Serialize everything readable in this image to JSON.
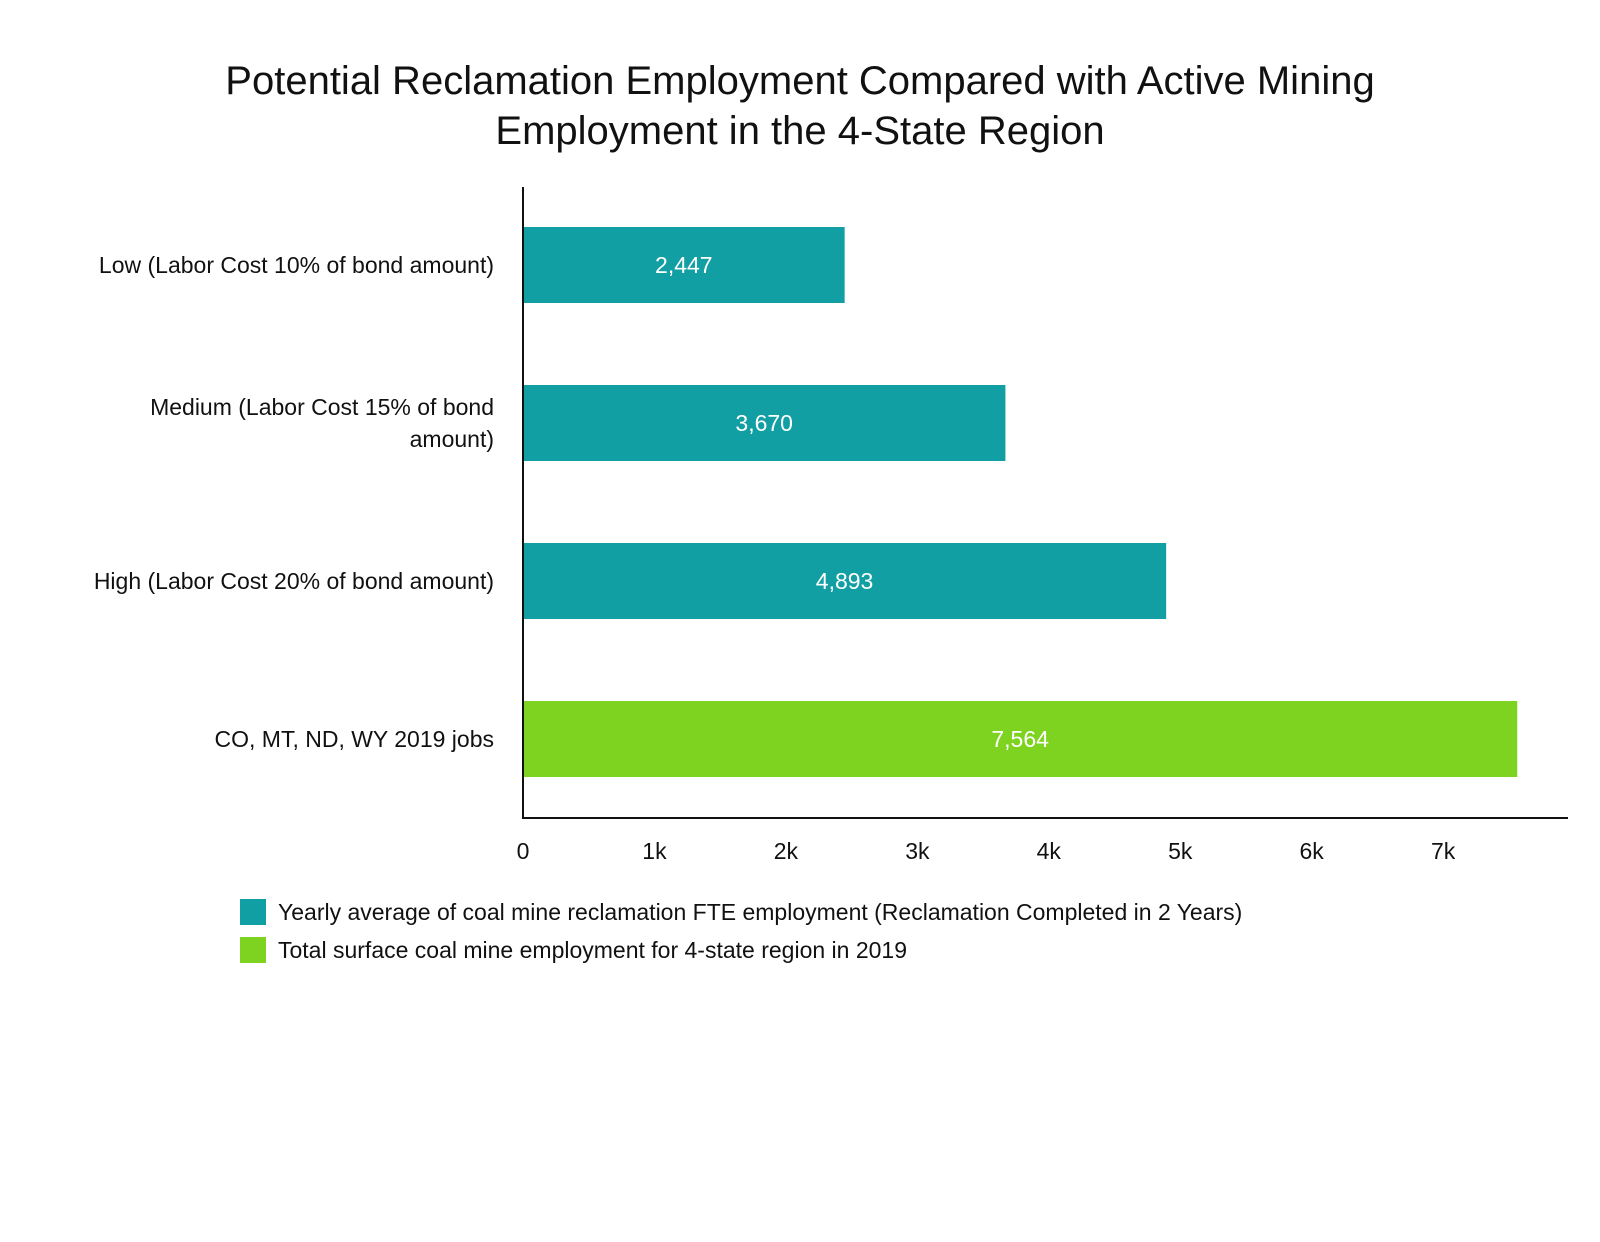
{
  "chart_data": {
    "type": "bar",
    "orientation": "horizontal",
    "title": [
      "Potential Reclamation Employment Compared with Active Mining",
      "Employment in the 4-State Region"
    ],
    "categories": [
      [
        "Low (Labor Cost 10% of bond amount)"
      ],
      [
        "Medium (Labor Cost 15% of bond",
        "amount)"
      ],
      [
        "High (Labor Cost 20% of bond amount)"
      ],
      [
        "CO, MT, ND, WY 2019 jobs"
      ]
    ],
    "values": [
      2447,
      3670,
      4893,
      7564
    ],
    "value_labels": [
      "2,447",
      "3,670",
      "4,893",
      "7,564"
    ],
    "bar_series": [
      0,
      0,
      0,
      1
    ],
    "xlim": [
      0,
      7950
    ],
    "xticks": [
      {
        "value": 0,
        "label": "0"
      },
      {
        "value": 1000,
        "label": "1k"
      },
      {
        "value": 2000,
        "label": "2k"
      },
      {
        "value": 3000,
        "label": "3k"
      },
      {
        "value": 4000,
        "label": "4k"
      },
      {
        "value": 5000,
        "label": "5k"
      },
      {
        "value": 6000,
        "label": "6k"
      },
      {
        "value": 7000,
        "label": "7k"
      }
    ],
    "xlabel": "",
    "ylabel": "",
    "grid": false,
    "legend_position": "bottom-left",
    "series": [
      {
        "name": "Yearly average of coal mine reclamation FTE employment (Reclamation Completed in 2 Years)",
        "color": "#119fa3"
      },
      {
        "name": "Total surface coal mine employment for 4-state region in 2019",
        "color": "#7ed321"
      }
    ]
  }
}
